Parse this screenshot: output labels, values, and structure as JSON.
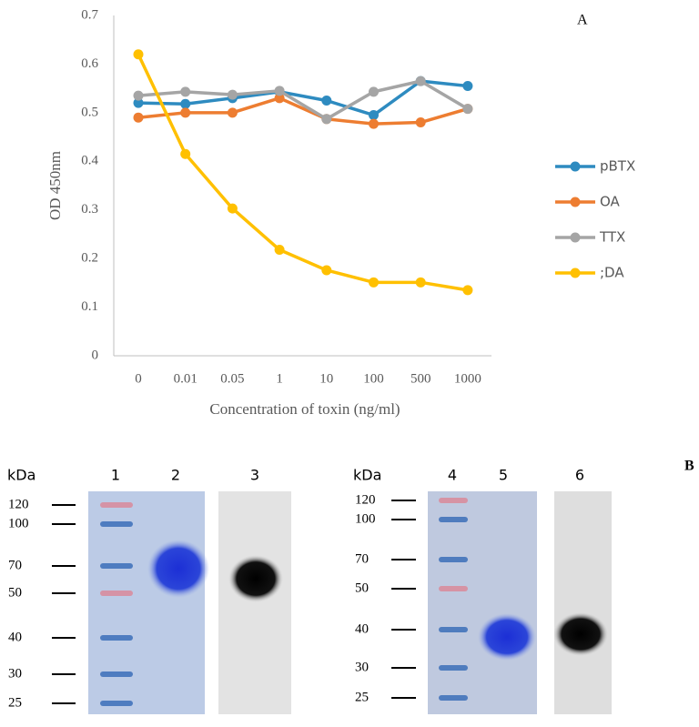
{
  "chart_data": {
    "type": "line",
    "panel_label": "A",
    "x_label": "Concentration of toxin (ng/ml)",
    "y_label": "OD 450nm",
    "categories": [
      "0",
      "0.01",
      "0.05",
      "1",
      "10",
      "100",
      "500",
      "1000"
    ],
    "series": [
      {
        "name": "pBTX",
        "color": "#2e8bc0",
        "values": [
          0.52,
          0.518,
          0.53,
          0.543,
          0.525,
          0.495,
          0.565,
          0.555
        ]
      },
      {
        "name": "OA",
        "color": "#ed7d31",
        "values": [
          0.49,
          0.5,
          0.5,
          0.53,
          0.487,
          0.477,
          0.48,
          0.508
        ]
      },
      {
        "name": "TTX",
        "color": "#a5a5a5",
        "values": [
          0.535,
          0.543,
          0.537,
          0.545,
          0.487,
          0.543,
          0.565,
          0.508
        ]
      },
      {
        "name": ";DA",
        "color": "#ffc000",
        "values": [
          0.62,
          0.415,
          0.303,
          0.218,
          0.176,
          0.151,
          0.151,
          0.135
        ]
      }
    ],
    "ylim": [
      0,
      0.7
    ],
    "yticks": [
      0,
      0.1,
      0.2,
      0.3,
      0.4,
      0.5,
      0.6,
      0.7
    ],
    "grid": false,
    "legend": "right"
  },
  "panel_b": {
    "label": "B",
    "unit": "kDa",
    "left_lanes": [
      "1",
      "2",
      "3"
    ],
    "right_lanes": [
      "4",
      "5",
      "6"
    ],
    "markers": [
      "120",
      "100",
      "70",
      "50",
      "40",
      "30",
      "25"
    ]
  }
}
